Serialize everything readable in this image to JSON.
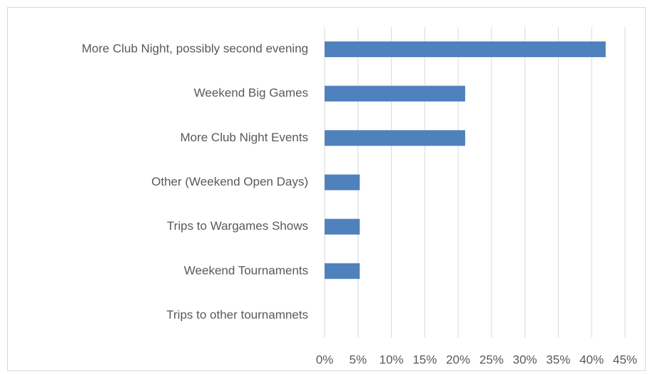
{
  "chart_data": {
    "type": "bar",
    "orientation": "horizontal",
    "categories": [
      "More Club Night, possibly second evening",
      "Weekend Big Games",
      "More Club Night Events",
      "Other (Weekend Open Days)",
      "Trips to Wargames Shows",
      "Weekend Tournaments",
      "Trips to other tournamnets"
    ],
    "values": [
      42.1,
      21.05,
      21.05,
      5.26,
      5.26,
      5.26,
      0
    ],
    "color": "#4f81bd",
    "xlim": [
      0,
      45
    ],
    "xticks": [
      {
        "value": 0,
        "label": "0%"
      },
      {
        "value": 5,
        "label": "5%"
      },
      {
        "value": 10,
        "label": "10%"
      },
      {
        "value": 15,
        "label": "15%"
      },
      {
        "value": 20,
        "label": "20%"
      },
      {
        "value": 25,
        "label": "25%"
      },
      {
        "value": 30,
        "label": "30%"
      },
      {
        "value": 35,
        "label": "35%"
      },
      {
        "value": 40,
        "label": "40%"
      },
      {
        "value": 45,
        "label": "45%"
      }
    ],
    "grid": true
  }
}
